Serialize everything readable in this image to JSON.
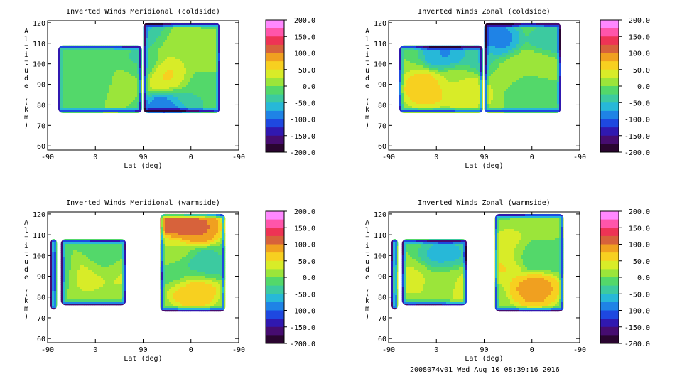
{
  "footer": "2008074v01 Wed Aug 10 08:39:16 2016",
  "colorbar": {
    "ticks": [
      "200.0",
      "150.0",
      "100.0",
      "50.0",
      "0.0",
      "-50.0",
      "-100.0",
      "-150.0",
      "-200.0"
    ],
    "range": [
      -200,
      200
    ],
    "colors": [
      "#ff88ff",
      "#ff55aa",
      "#ee3355",
      "#d7623b",
      "#f0a020",
      "#f7d020",
      "#d8ec28",
      "#9be53a",
      "#53d86a",
      "#3ccaa0",
      "#27b8d8",
      "#1f83e6",
      "#1e48e0",
      "#3018b0",
      "#460c70",
      "#2a0530"
    ]
  },
  "chart_data": [
    {
      "type": "heatmap",
      "title": "Inverted Winds Meridional (coldside)",
      "xlabel": "Lat (deg)",
      "ylabel": "Altitude (km)",
      "xticks": [
        "-90",
        "0",
        "90",
        "0",
        "-90"
      ],
      "yticks": [
        "60",
        "70",
        "80",
        "90",
        "100",
        "110",
        "120"
      ],
      "ylim": [
        58,
        121
      ],
      "xlim": [
        -90,
        270
      ],
      "blobs": [
        {
          "x": -45,
          "y": 96,
          "v": -10
        },
        {
          "x": -20,
          "y": 95,
          "v": 5
        },
        {
          "x": 0,
          "y": 95,
          "v": -40
        },
        {
          "x": 50,
          "y": 93,
          "v": 15
        },
        {
          "x": 80,
          "y": 100,
          "v": -30
        },
        {
          "x": 110,
          "y": 115,
          "v": -60
        },
        {
          "x": 140,
          "y": 112,
          "v": 25
        },
        {
          "x": 140,
          "y": 94,
          "v": 55
        },
        {
          "x": 200,
          "y": 102,
          "v": 15
        },
        {
          "x": 200,
          "y": 92,
          "v": -10
        },
        {
          "x": 170,
          "y": 82,
          "v": -30
        },
        {
          "x": 140,
          "y": 78,
          "v": -110
        }
      ],
      "regions": [
        {
          "x": [
            -70,
            88
          ],
          "y": [
            76,
            109
          ]
        },
        {
          "x": [
            90,
            235
          ],
          "y": [
            76,
            120
          ]
        }
      ]
    },
    {
      "type": "heatmap",
      "title": "Inverted Winds Zonal (coldside)",
      "xlabel": "Lat (deg)",
      "ylabel": "Altitude (km)",
      "xticks": [
        "-90",
        "0",
        "90",
        "0",
        "-90"
      ],
      "yticks": [
        "60",
        "70",
        "80",
        "90",
        "100",
        "110",
        "120"
      ],
      "ylim": [
        58,
        121
      ],
      "xlim": [
        -90,
        270
      ],
      "blobs": [
        {
          "x": -20,
          "y": 88,
          "v": 70
        },
        {
          "x": 40,
          "y": 92,
          "v": 20
        },
        {
          "x": 60,
          "y": 86,
          "v": 50
        },
        {
          "x": 20,
          "y": 105,
          "v": -80
        },
        {
          "x": 80,
          "y": 103,
          "v": -40
        },
        {
          "x": 110,
          "y": 112,
          "v": -90
        },
        {
          "x": 140,
          "y": 96,
          "v": 10
        },
        {
          "x": 200,
          "y": 100,
          "v": 25
        },
        {
          "x": 180,
          "y": 88,
          "v": -20
        },
        {
          "x": 220,
          "y": 110,
          "v": -50
        }
      ],
      "regions": [
        {
          "x": [
            -70,
            88
          ],
          "y": [
            76,
            109
          ]
        },
        {
          "x": [
            90,
            235
          ],
          "y": [
            76,
            120
          ]
        }
      ]
    },
    {
      "type": "heatmap",
      "title": "Inverted Winds Meridional (warmside)",
      "xlabel": "Lat (deg)",
      "ylabel": "Altitude (km)",
      "xticks": [
        "-90",
        "0",
        "90",
        "0",
        "-90"
      ],
      "yticks": [
        "60",
        "70",
        "80",
        "90",
        "100",
        "110",
        "120"
      ],
      "ylim": [
        58,
        121
      ],
      "xlim": [
        -90,
        270
      ],
      "blobs": [
        {
          "x": -75,
          "y": 92,
          "v": -20
        },
        {
          "x": -15,
          "y": 91,
          "v": 35
        },
        {
          "x": 20,
          "y": 98,
          "v": -20
        },
        {
          "x": 50,
          "y": 92,
          "v": 30
        },
        {
          "x": 150,
          "y": 116,
          "v": 130
        },
        {
          "x": 190,
          "y": 114,
          "v": 110
        },
        {
          "x": 140,
          "y": 102,
          "v": 25
        },
        {
          "x": 200,
          "y": 95,
          "v": -40
        },
        {
          "x": 160,
          "y": 92,
          "v": -20
        },
        {
          "x": 185,
          "y": 84,
          "v": 80
        }
      ],
      "regions": [
        {
          "x": [
            -85,
            -72
          ],
          "y": [
            74,
            108
          ]
        },
        {
          "x": [
            -65,
            58
          ],
          "y": [
            76,
            108
          ]
        },
        {
          "x": [
            122,
            245
          ],
          "y": [
            73,
            120
          ]
        }
      ]
    },
    {
      "type": "heatmap",
      "title": "Inverted Winds Zonal (warmside)",
      "xlabel": "Lat (deg)",
      "ylabel": "Altitude (km)",
      "xticks": [
        "-90",
        "0",
        "90",
        "0",
        "-90"
      ],
      "yticks": [
        "60",
        "70",
        "80",
        "90",
        "100",
        "110",
        "120"
      ],
      "ylim": [
        58,
        121
      ],
      "xlim": [
        -90,
        270
      ],
      "blobs": [
        {
          "x": -45,
          "y": 88,
          "v": 30
        },
        {
          "x": 15,
          "y": 100,
          "v": -60
        },
        {
          "x": 20,
          "y": 88,
          "v": 10
        },
        {
          "x": 50,
          "y": 86,
          "v": 40
        },
        {
          "x": 140,
          "y": 104,
          "v": 40
        },
        {
          "x": 130,
          "y": 96,
          "v": 55
        },
        {
          "x": 175,
          "y": 100,
          "v": -30
        },
        {
          "x": 185,
          "y": 84,
          "v": 90
        },
        {
          "x": 220,
          "y": 100,
          "v": -10
        },
        {
          "x": 200,
          "y": 116,
          "v": 20
        }
      ],
      "regions": [
        {
          "x": [
            -85,
            -72
          ],
          "y": [
            74,
            108
          ]
        },
        {
          "x": [
            -65,
            58
          ],
          "y": [
            76,
            108
          ]
        },
        {
          "x": [
            110,
            240
          ],
          "y": [
            73,
            120
          ]
        }
      ]
    }
  ]
}
